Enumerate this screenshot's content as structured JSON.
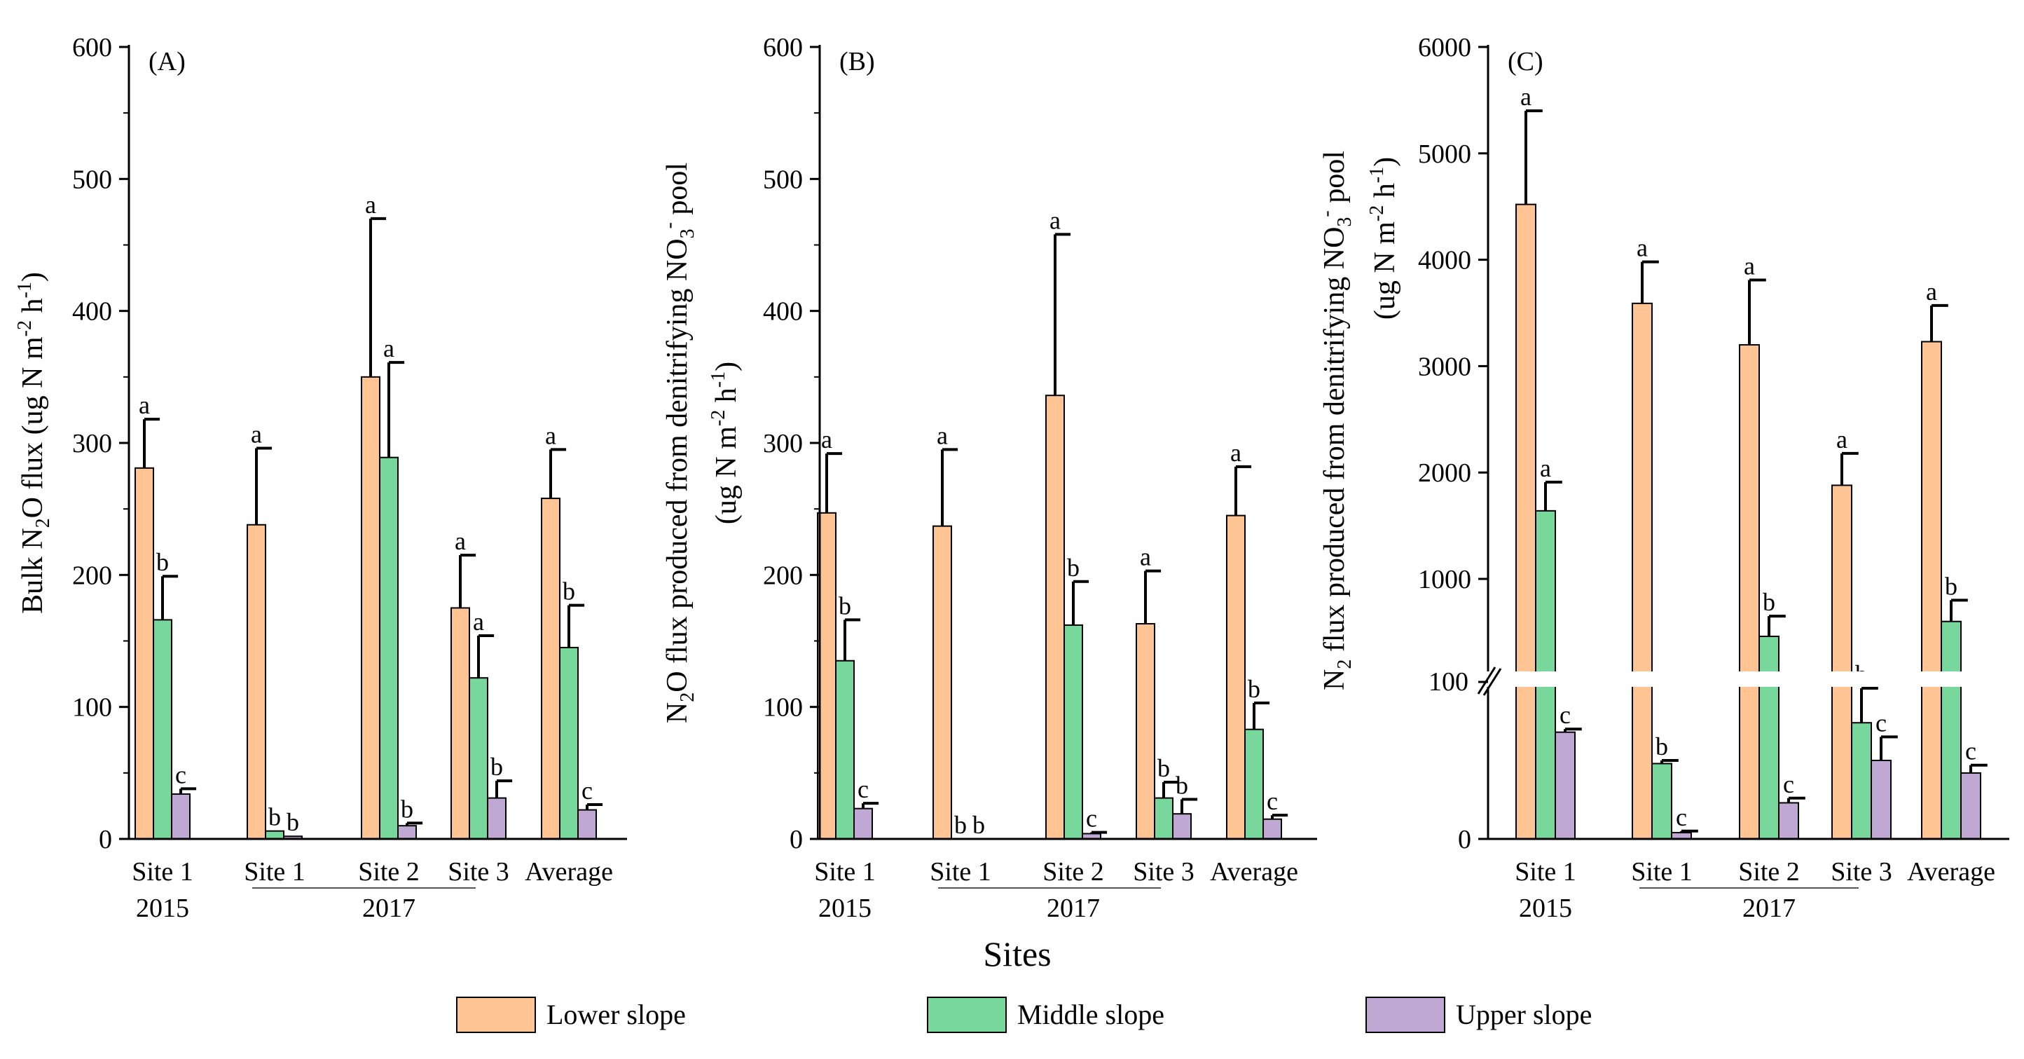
{
  "sites_label": "Sites",
  "colors": {
    "lower": "#FFC494",
    "middle": "#78D79A",
    "upper": "#BFA8D4",
    "axis": "#000000"
  },
  "legend": [
    {
      "key": "lower",
      "label": "Lower slope"
    },
    {
      "key": "middle",
      "label": "Middle slope"
    },
    {
      "key": "upper",
      "label": "Upper slope"
    }
  ],
  "chart_data": [
    {
      "type": "bar",
      "panel": "(A)",
      "ylabel": "Bulk N2O flux (ug N m-2 h-1)",
      "ylim": [
        0,
        600
      ],
      "yticks": [
        0,
        100,
        200,
        300,
        400,
        500,
        600
      ],
      "categories": [
        "Site 1",
        "Site 1",
        "Site 2",
        "Site 3",
        "Average"
      ],
      "year_labels": [
        "2015",
        "2017"
      ],
      "series": [
        {
          "name": "Lower slope",
          "key": "lower",
          "values": [
            281,
            238,
            350,
            175,
            258
          ],
          "errors": [
            37,
            58,
            120,
            40,
            37
          ],
          "letters": [
            "a",
            "a",
            "a",
            "a",
            "a"
          ]
        },
        {
          "name": "Middle slope",
          "key": "middle",
          "values": [
            166,
            6,
            289,
            122,
            145
          ],
          "errors": [
            33,
            0,
            72,
            32,
            32
          ],
          "letters": [
            "b",
            "b",
            "a",
            "a",
            "b"
          ]
        },
        {
          "name": "Upper slope",
          "key": "upper",
          "values": [
            34,
            2,
            10,
            31,
            22
          ],
          "errors": [
            4,
            0,
            2,
            13,
            4
          ],
          "letters": [
            "c",
            "b",
            "b",
            "b",
            "c"
          ]
        }
      ]
    },
    {
      "type": "bar",
      "panel": "(B)",
      "ylabel": "N2O flux produced from denitrifying NO3- pool (ug N m-2 h-1)",
      "ylim": [
        0,
        600
      ],
      "yticks": [
        0,
        100,
        200,
        300,
        400,
        500,
        600
      ],
      "categories": [
        "Site 1",
        "Site 1",
        "Site 2",
        "Site 3",
        "Average"
      ],
      "year_labels": [
        "2015",
        "2017"
      ],
      "series": [
        {
          "name": "Lower slope",
          "key": "lower",
          "values": [
            247,
            237,
            336,
            163,
            245
          ],
          "errors": [
            45,
            58,
            122,
            40,
            37
          ],
          "letters": [
            "a",
            "a",
            "a",
            "a",
            "a"
          ]
        },
        {
          "name": "Middle slope",
          "key": "middle",
          "values": [
            135,
            0,
            162,
            31,
            83
          ],
          "errors": [
            31,
            0,
            33,
            12,
            20
          ],
          "letters": [
            "b",
            "b",
            "b",
            "b",
            "b"
          ]
        },
        {
          "name": "Upper slope",
          "key": "upper",
          "values": [
            23,
            0,
            4,
            19,
            15
          ],
          "errors": [
            4,
            0,
            1,
            11,
            3
          ],
          "letters": [
            "c",
            "b",
            "c",
            "b",
            "c"
          ]
        }
      ]
    },
    {
      "type": "bar",
      "panel": "(C)",
      "ylabel": "N2 flux produced from denitrifying NO3- pool (ug N m-2 h-1)",
      "axis_break": true,
      "ylim": [
        0,
        6000
      ],
      "yticks": [
        0,
        100,
        1000,
        2000,
        3000,
        4000,
        5000,
        6000
      ],
      "categories": [
        "Site 1",
        "Site 1",
        "Site 2",
        "Site 3",
        "Average"
      ],
      "year_labels": [
        "2015",
        "2017"
      ],
      "series": [
        {
          "name": "Lower slope",
          "key": "lower",
          "values": [
            4520,
            3590,
            3200,
            1880,
            3230
          ],
          "errors": [
            880,
            390,
            610,
            300,
            340
          ],
          "letters": [
            "a",
            "a",
            "a",
            "a",
            "a"
          ]
        },
        {
          "name": "Middle slope",
          "key": "middle",
          "values": [
            1640,
            48,
            460,
            74,
            600
          ],
          "errors": [
            270,
            2,
            190,
            22,
            200
          ],
          "letters": [
            "a",
            "b",
            "b",
            "b",
            "b"
          ]
        },
        {
          "name": "Upper slope",
          "key": "upper",
          "values": [
            68,
            4,
            23,
            50,
            42
          ],
          "errors": [
            2,
            1,
            3,
            15,
            5
          ],
          "letters": [
            "c",
            "c",
            "c",
            "c",
            "c"
          ]
        }
      ]
    }
  ]
}
